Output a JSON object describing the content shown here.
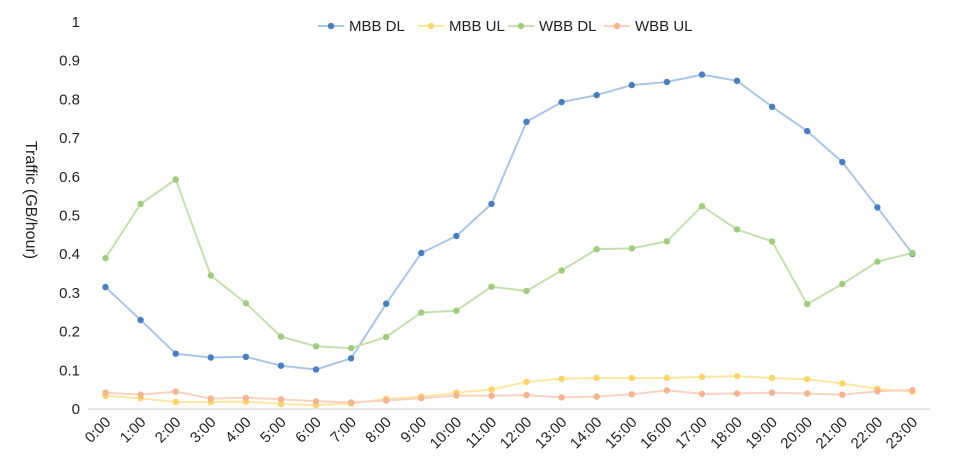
{
  "chart_data": {
    "type": "line",
    "title": "",
    "xlabel": "",
    "ylabel": "Traffic (GB/hour)",
    "ylim": [
      0,
      1
    ],
    "yticks": [
      0,
      0.1,
      0.2,
      0.3,
      0.4,
      0.5,
      0.6,
      0.7,
      0.8,
      0.9,
      1
    ],
    "ytick_labels": [
      "0",
      "0.1",
      "0.2",
      "0.3",
      "0.4",
      "0.5",
      "0.6",
      "0.7",
      "0.8",
      "0.9",
      "1"
    ],
    "grid": false,
    "legend": "top-center",
    "categories": [
      "0:00",
      "1:00",
      "2:00",
      "3:00",
      "4:00",
      "5:00",
      "6:00",
      "7:00",
      "8:00",
      "9:00",
      "10:00",
      "11:00",
      "12:00",
      "13:00",
      "14:00",
      "15:00",
      "16:00",
      "17:00",
      "18:00",
      "19:00",
      "20:00",
      "21:00",
      "22:00",
      "23:00"
    ],
    "series": [
      {
        "name": "MBB DL",
        "line_color": "#a9c6e8",
        "marker_color": "#4a7ebf",
        "values": [
          0.315,
          0.23,
          0.143,
          0.133,
          0.135,
          0.112,
          0.102,
          0.131,
          0.272,
          0.403,
          0.447,
          0.53,
          0.742,
          0.793,
          0.811,
          0.837,
          0.845,
          0.864,
          0.848,
          0.781,
          0.718,
          0.638,
          0.521,
          0.401
        ]
      },
      {
        "name": "MBB UL",
        "line_color": "#fde7a3",
        "marker_color": "#fbd56a",
        "values": [
          0.034,
          0.028,
          0.018,
          0.018,
          0.019,
          0.013,
          0.01,
          0.014,
          0.026,
          0.032,
          0.042,
          0.05,
          0.07,
          0.078,
          0.08,
          0.08,
          0.08,
          0.083,
          0.085,
          0.08,
          0.077,
          0.066,
          0.052,
          0.045
        ]
      },
      {
        "name": "WBB DL",
        "line_color": "#c3e0ad",
        "marker_color": "#9fcc7e",
        "values": [
          0.39,
          0.53,
          0.593,
          0.345,
          0.273,
          0.187,
          0.162,
          0.157,
          0.186,
          0.249,
          0.254,
          0.316,
          0.305,
          0.358,
          0.413,
          0.415,
          0.433,
          0.524,
          0.464,
          0.433,
          0.271,
          0.323,
          0.381,
          0.403
        ]
      },
      {
        "name": "WBB UL",
        "line_color": "#f9d3c0",
        "marker_color": "#f3b48f",
        "values": [
          0.042,
          0.037,
          0.045,
          0.027,
          0.029,
          0.025,
          0.02,
          0.017,
          0.022,
          0.028,
          0.035,
          0.034,
          0.036,
          0.03,
          0.032,
          0.038,
          0.048,
          0.039,
          0.04,
          0.042,
          0.04,
          0.037,
          0.046,
          0.049
        ]
      }
    ]
  }
}
